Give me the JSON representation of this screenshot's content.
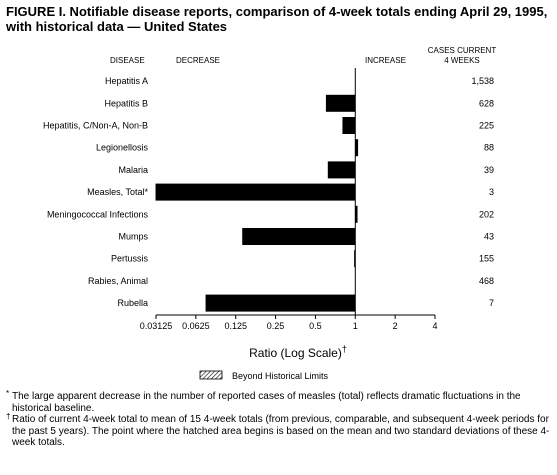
{
  "title": "FIGURE I. Notifiable disease reports, comparison of 4-week totals ending April 29, 1995, with historical data — United States",
  "headers": {
    "disease": "DISEASE",
    "decrease": "DECREASE",
    "increase": "INCREASE",
    "cases_line1": "CASES CURRENT",
    "cases_line2": "4 WEEKS"
  },
  "legend_label": "Beyond Historical Limits",
  "footnotes": [
    {
      "mark": "*",
      "text": "The large apparent decrease in the number of reported cases of measles (total) reflects dramatic fluctuations in the historical baseline."
    },
    {
      "mark": "†",
      "text": "Ratio of current 4-week total to mean of 15 4-week totals (from previous, comparable, and subsequent 4-week periods for the past 5 years). The point where the hatched area begins is based on the mean and two standard deviations of these 4-week totals."
    }
  ],
  "chart_data": {
    "type": "bar",
    "orientation": "horizontal",
    "scale": "log2",
    "xlabel": "Ratio (Log Scale)",
    "xlabel_mark": "†",
    "xlim": [
      0.03125,
      4
    ],
    "ticks": [
      0.03125,
      0.0625,
      0.125,
      0.25,
      0.5,
      1,
      2,
      4
    ],
    "tick_labels": [
      "0.03125",
      "0.0625",
      "0.125",
      "0.25",
      "0.5",
      "1",
      "2",
      "4"
    ],
    "baseline": 1,
    "categories": [
      "Hepatitis A",
      "Hepatitis B",
      "Hepatitis, C/Non-A, Non-B",
      "Legionellosis",
      "Malaria",
      "Measles, Total*",
      "Meningococcal Infections",
      "Mumps",
      "Pertussis",
      "Rabies, Animal",
      "Rubella"
    ],
    "values": [
      1.0,
      0.6,
      0.8,
      1.05,
      0.62,
      0.031,
      1.04,
      0.14,
      0.98,
      1.0,
      0.074
    ],
    "cases": [
      "1,538",
      "628",
      "225",
      "88",
      "39",
      "3",
      "202",
      "43",
      "155",
      "468",
      "7"
    ]
  }
}
